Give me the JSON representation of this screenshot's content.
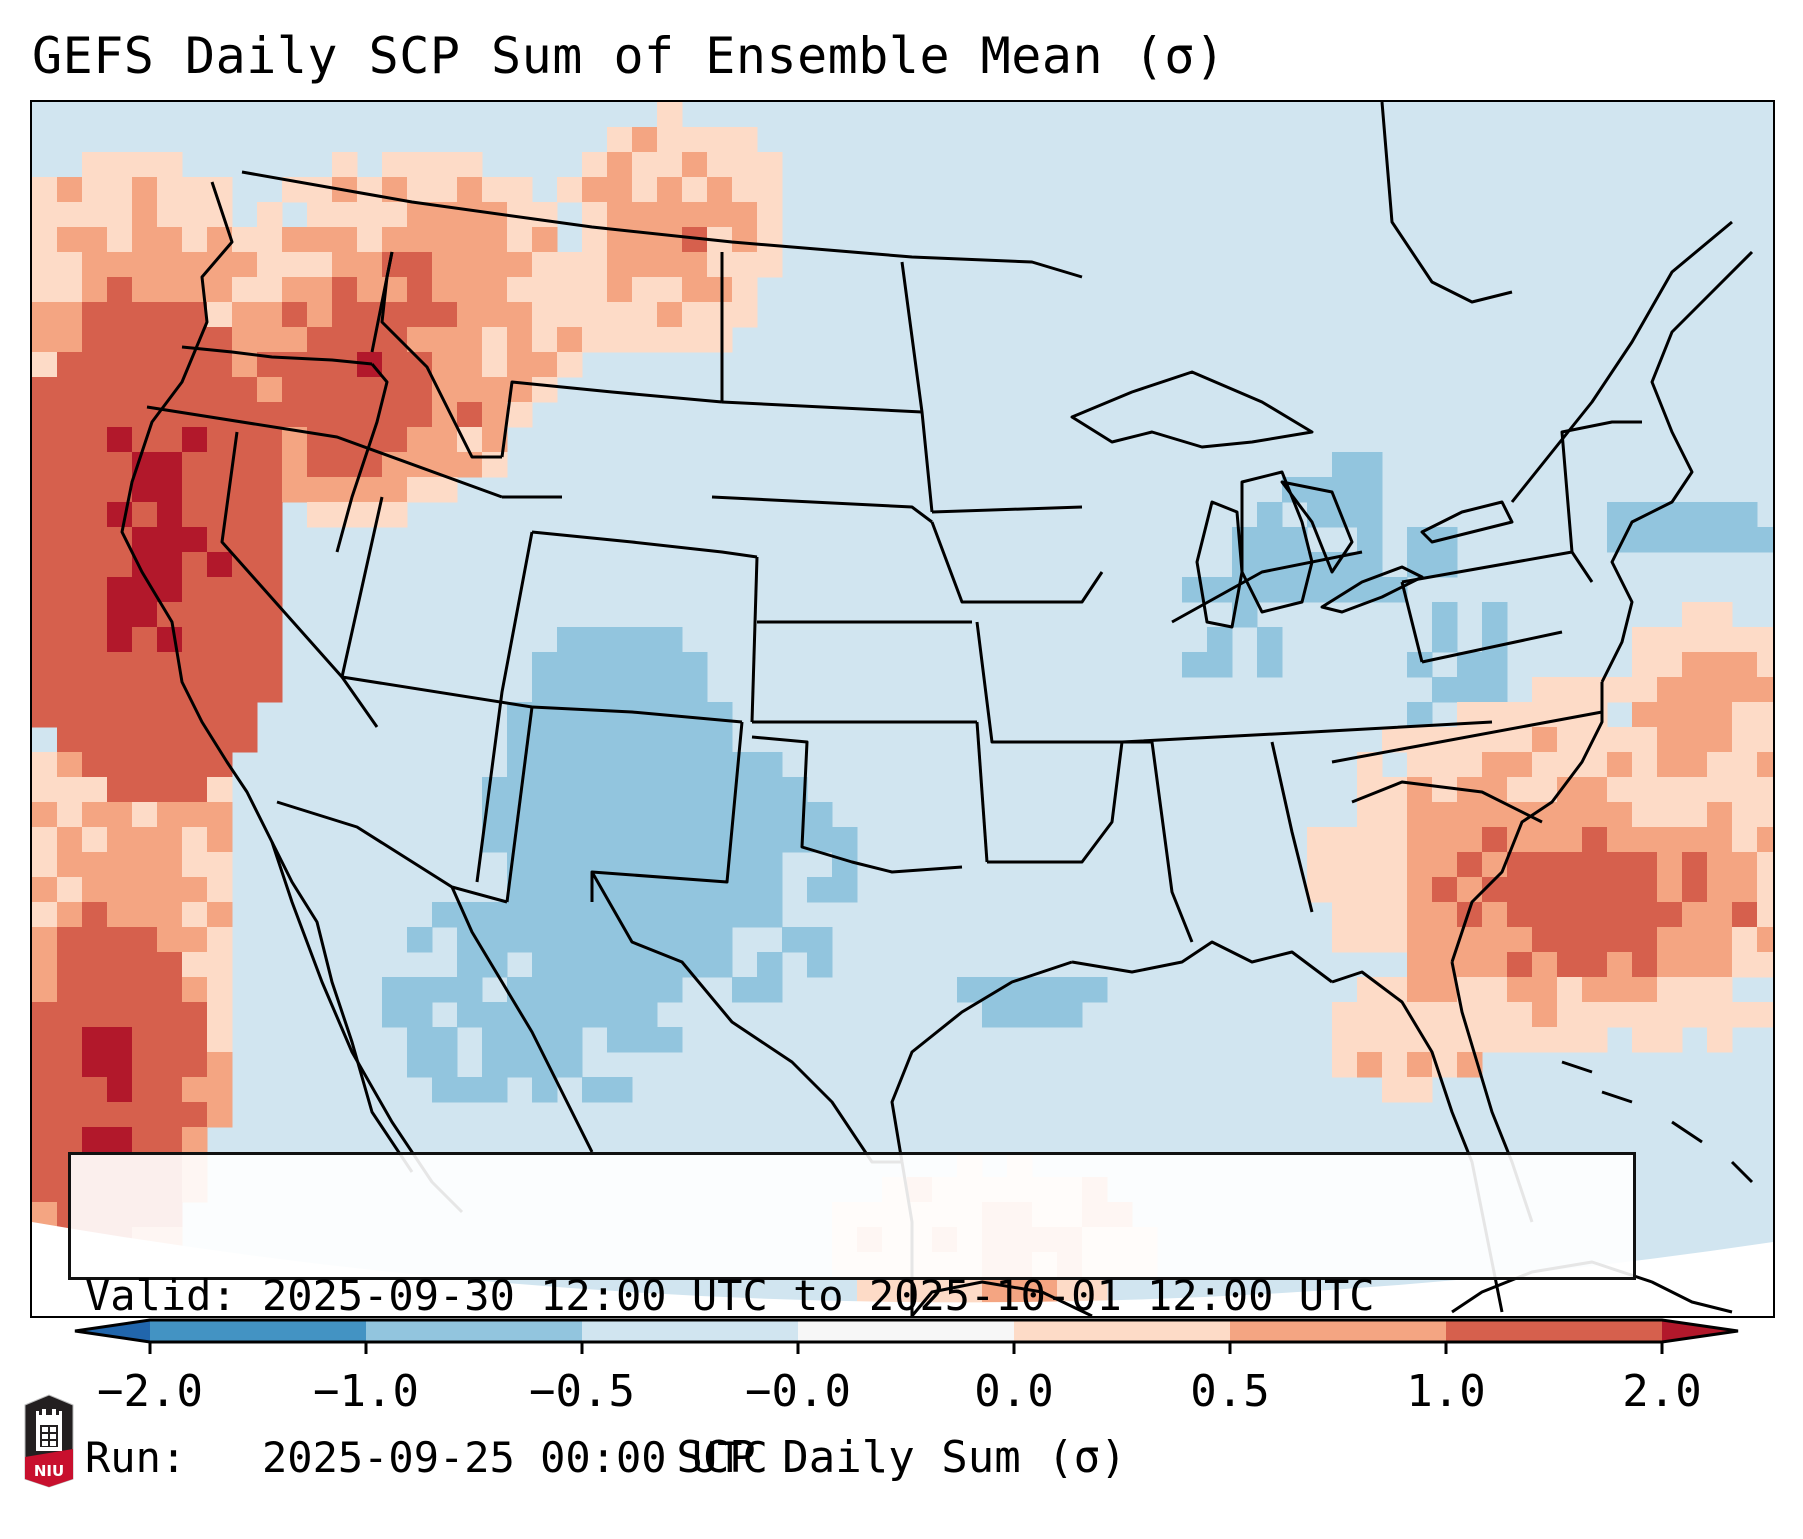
{
  "title": "GEFS Daily SCP Sum of Ensemble Mean (σ)",
  "info_box": {
    "valid_line": "Valid: 2025-09-30 12:00 UTC to 2025-10-01 12:00 UTC",
    "run_line": "Run:   2025-09-25 00:00 UTC"
  },
  "colorbar": {
    "label": "SCP Daily Sum (σ)",
    "ticks": [
      "−2.0",
      "−1.0",
      "−0.5",
      "−0.0",
      "0.0",
      "0.5",
      "1.0",
      "2.0"
    ],
    "bins": [
      {
        "range": "< -2.0",
        "color": "#2166ac"
      },
      {
        "range": "-2.0 to -1.0",
        "color": "#4393c3"
      },
      {
        "range": "-1.0 to -0.5",
        "color": "#92c5de"
      },
      {
        "range": "-0.5 to -0.0",
        "color": "#d1e5f0"
      },
      {
        "range": "-0.0 to 0.0",
        "color": "#f7f7f7"
      },
      {
        "range": "0.0 to 0.5",
        "color": "#fddbc7"
      },
      {
        "range": "0.5 to 1.0",
        "color": "#f4a582"
      },
      {
        "range": "1.0 to 2.0",
        "color": "#d6604d"
      },
      {
        "range": "> 2.0",
        "color": "#b2182b"
      }
    ],
    "extend": "both"
  },
  "logo": {
    "text": "NIU",
    "colors": {
      "dark": "#231f20",
      "red": "#c8102e"
    }
  },
  "chart_data": {
    "type": "heatmap",
    "title": "GEFS Daily SCP Sum of Ensemble Mean (σ)",
    "colorbar_label": "SCP Daily Sum (σ)",
    "domain": "Continental United States, Lambert conformal projection",
    "levels": [
      -2.0,
      -1.0,
      -0.5,
      -0.0,
      0.0,
      0.5,
      1.0,
      2.0
    ],
    "valid_start": "2025-09-30 12:00 UTC",
    "valid_end": "2025-10-01 12:00 UTC",
    "run": "2025-09-25 00:00 UTC",
    "regions": [
      {
        "name": "Pacific Northwest / Northern California coast & offshore",
        "category": "> 2.0"
      },
      {
        "name": "Oregon / Idaho interior",
        "category": "1.0 to 2.0 / > 2.0"
      },
      {
        "name": "Washington / Montana / southern Alberta",
        "category": "0.0 to 1.0"
      },
      {
        "name": "Offshore Baja California (Pacific)",
        "category": "> 2.0"
      },
      {
        "name": "Western Atlantic off Carolinas/Georgia",
        "category": "0.5 to 2.0"
      },
      {
        "name": "Northern Florida / NE Gulf",
        "category": "0.0 to 0.5"
      },
      {
        "name": "Western Caribbean / Yucatan channel",
        "category": "0.0 to 1.0"
      },
      {
        "name": "Colorado / New Mexico / West Texas",
        "category": "-1.0 to -0.5"
      },
      {
        "name": "Great Lakes / Ohio Valley / Mid-Atlantic",
        "category": "-1.0 to -0.5 (scattered)"
      },
      {
        "name": "Remainder of CONUS",
        "category": "-0.5 to -0.0"
      }
    ]
  }
}
